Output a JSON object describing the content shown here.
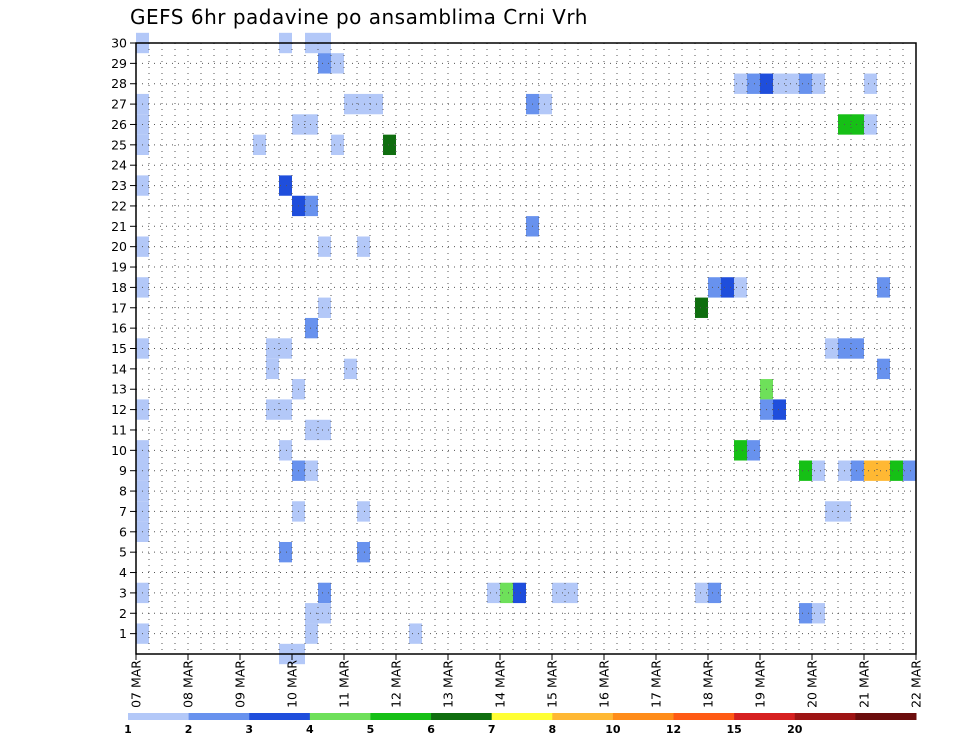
{
  "chart_data": {
    "type": "heatmap",
    "title": "GEFS 6hr padavine po ansamblima Crni Vrh",
    "x_tick_labels": [
      "07 MAR",
      "08 MAR",
      "09 MAR",
      "10 MAR",
      "11 MAR",
      "12 MAR",
      "13 MAR",
      "14 MAR",
      "15 MAR",
      "16 MAR",
      "17 MAR",
      "18 MAR",
      "19 MAR",
      "20 MAR",
      "21 MAR",
      "22 MAR"
    ],
    "y_tick_labels": [
      "1",
      "2",
      "3",
      "4",
      "5",
      "6",
      "7",
      "8",
      "9",
      "10",
      "11",
      "12",
      "13",
      "14",
      "15",
      "16",
      "17",
      "18",
      "19",
      "20",
      "21",
      "22",
      "23",
      "24",
      "25",
      "26",
      "27",
      "28",
      "29",
      "30"
    ],
    "x_unit": "6hr step",
    "xlim": [
      0,
      60
    ],
    "ylim": [
      0,
      30
    ],
    "grid": true,
    "colorbar": {
      "labels": [
        "1",
        "2",
        "3",
        "4",
        "5",
        "6",
        "7",
        "8",
        "10",
        "12",
        "15",
        "20"
      ],
      "colors": [
        "#b3c8f8",
        "#6892ee",
        "#1f4edc",
        "#6ee05a",
        "#16c016",
        "#0f6e0f",
        "#ffff33",
        "#ffb833",
        "#ff8c19",
        "#ff5a14",
        "#d62020",
        "#9e1414",
        "#6b0d0d"
      ]
    },
    "cells": [
      {
        "x": 0,
        "y": 30,
        "c": 0
      },
      {
        "x": 11,
        "y": 30,
        "c": 0
      },
      {
        "x": 13,
        "y": 30,
        "c": 0
      },
      {
        "x": 14,
        "y": 30,
        "c": 0
      },
      {
        "x": 14,
        "y": 29,
        "c": 1
      },
      {
        "x": 15,
        "y": 29,
        "c": 0
      },
      {
        "x": 46,
        "y": 28,
        "c": 0
      },
      {
        "x": 47,
        "y": 28,
        "c": 1
      },
      {
        "x": 48,
        "y": 28,
        "c": 2
      },
      {
        "x": 49,
        "y": 28,
        "c": 0
      },
      {
        "x": 50,
        "y": 28,
        "c": 0
      },
      {
        "x": 51,
        "y": 28,
        "c": 1
      },
      {
        "x": 52,
        "y": 28,
        "c": 0
      },
      {
        "x": 56,
        "y": 28,
        "c": 0
      },
      {
        "x": 0,
        "y": 27,
        "c": 0
      },
      {
        "x": 16,
        "y": 27,
        "c": 0
      },
      {
        "x": 17,
        "y": 27,
        "c": 0
      },
      {
        "x": 18,
        "y": 27,
        "c": 0
      },
      {
        "x": 30,
        "y": 27,
        "c": 1
      },
      {
        "x": 31,
        "y": 27,
        "c": 0
      },
      {
        "x": 0,
        "y": 26,
        "c": 0
      },
      {
        "x": 12,
        "y": 26,
        "c": 0
      },
      {
        "x": 13,
        "y": 26,
        "c": 0
      },
      {
        "x": 54,
        "y": 26,
        "c": 4
      },
      {
        "x": 55,
        "y": 26,
        "c": 4
      },
      {
        "x": 56,
        "y": 26,
        "c": 0
      },
      {
        "x": 0,
        "y": 25,
        "c": 0
      },
      {
        "x": 9,
        "y": 25,
        "c": 0
      },
      {
        "x": 15,
        "y": 25,
        "c": 0
      },
      {
        "x": 19,
        "y": 25,
        "c": 5
      },
      {
        "x": 0,
        "y": 23,
        "c": 0
      },
      {
        "x": 11,
        "y": 23,
        "c": 2
      },
      {
        "x": 12,
        "y": 22,
        "c": 2
      },
      {
        "x": 13,
        "y": 22,
        "c": 1
      },
      {
        "x": 30,
        "y": 21,
        "c": 1
      },
      {
        "x": 0,
        "y": 20,
        "c": 0
      },
      {
        "x": 14,
        "y": 20,
        "c": 0
      },
      {
        "x": 17,
        "y": 20,
        "c": 0
      },
      {
        "x": 0,
        "y": 18,
        "c": 0
      },
      {
        "x": 44,
        "y": 18,
        "c": 1
      },
      {
        "x": 45,
        "y": 18,
        "c": 2
      },
      {
        "x": 46,
        "y": 18,
        "c": 0
      },
      {
        "x": 57,
        "y": 18,
        "c": 1
      },
      {
        "x": 14,
        "y": 17,
        "c": 0
      },
      {
        "x": 43,
        "y": 17,
        "c": 5
      },
      {
        "x": 13,
        "y": 16,
        "c": 1
      },
      {
        "x": 0,
        "y": 15,
        "c": 0
      },
      {
        "x": 10,
        "y": 15,
        "c": 0
      },
      {
        "x": 11,
        "y": 15,
        "c": 0
      },
      {
        "x": 53,
        "y": 15,
        "c": 0
      },
      {
        "x": 54,
        "y": 15,
        "c": 1
      },
      {
        "x": 55,
        "y": 15,
        "c": 1
      },
      {
        "x": 10,
        "y": 14,
        "c": 0
      },
      {
        "x": 16,
        "y": 14,
        "c": 0
      },
      {
        "x": 57,
        "y": 14,
        "c": 1
      },
      {
        "x": 12,
        "y": 13,
        "c": 0
      },
      {
        "x": 48,
        "y": 13,
        "c": 3
      },
      {
        "x": 0,
        "y": 12,
        "c": 0
      },
      {
        "x": 10,
        "y": 12,
        "c": 0
      },
      {
        "x": 11,
        "y": 12,
        "c": 0
      },
      {
        "x": 48,
        "y": 12,
        "c": 1
      },
      {
        "x": 49,
        "y": 12,
        "c": 2
      },
      {
        "x": 13,
        "y": 11,
        "c": 0
      },
      {
        "x": 14,
        "y": 11,
        "c": 0
      },
      {
        "x": 0,
        "y": 10,
        "c": 0
      },
      {
        "x": 11,
        "y": 10,
        "c": 0
      },
      {
        "x": 46,
        "y": 10,
        "c": 4
      },
      {
        "x": 47,
        "y": 10,
        "c": 1
      },
      {
        "x": 0,
        "y": 9,
        "c": 0
      },
      {
        "x": 12,
        "y": 9,
        "c": 1
      },
      {
        "x": 13,
        "y": 9,
        "c": 0
      },
      {
        "x": 51,
        "y": 9,
        "c": 4
      },
      {
        "x": 52,
        "y": 9,
        "c": 0
      },
      {
        "x": 54,
        "y": 9,
        "c": 0
      },
      {
        "x": 55,
        "y": 9,
        "c": 1
      },
      {
        "x": 56,
        "y": 9,
        "c": 7
      },
      {
        "x": 57,
        "y": 9,
        "c": 7
      },
      {
        "x": 58,
        "y": 9,
        "c": 4
      },
      {
        "x": 59,
        "y": 9,
        "c": 1
      },
      {
        "x": 0,
        "y": 8,
        "c": 0
      },
      {
        "x": 0,
        "y": 7,
        "c": 0
      },
      {
        "x": 12,
        "y": 7,
        "c": 0
      },
      {
        "x": 17,
        "y": 7,
        "c": 0
      },
      {
        "x": 53,
        "y": 7,
        "c": 0
      },
      {
        "x": 54,
        "y": 7,
        "c": 0
      },
      {
        "x": 0,
        "y": 6,
        "c": 0
      },
      {
        "x": 11,
        "y": 5,
        "c": 1
      },
      {
        "x": 17,
        "y": 5,
        "c": 1
      },
      {
        "x": 0,
        "y": 3,
        "c": 0
      },
      {
        "x": 14,
        "y": 3,
        "c": 1
      },
      {
        "x": 27,
        "y": 3,
        "c": 0
      },
      {
        "x": 28,
        "y": 3,
        "c": 3
      },
      {
        "x": 29,
        "y": 3,
        "c": 2
      },
      {
        "x": 32,
        "y": 3,
        "c": 0
      },
      {
        "x": 33,
        "y": 3,
        "c": 0
      },
      {
        "x": 43,
        "y": 3,
        "c": 0
      },
      {
        "x": 44,
        "y": 3,
        "c": 1
      },
      {
        "x": 13,
        "y": 2,
        "c": 0
      },
      {
        "x": 14,
        "y": 2,
        "c": 0
      },
      {
        "x": 51,
        "y": 2,
        "c": 1
      },
      {
        "x": 52,
        "y": 2,
        "c": 0
      },
      {
        "x": 0,
        "y": 1,
        "c": 0
      },
      {
        "x": 13,
        "y": 1,
        "c": 0
      },
      {
        "x": 21,
        "y": 1,
        "c": 0
      },
      {
        "x": 11,
        "y": 0,
        "c": 0
      },
      {
        "x": 12,
        "y": 0,
        "c": 0
      }
    ]
  }
}
